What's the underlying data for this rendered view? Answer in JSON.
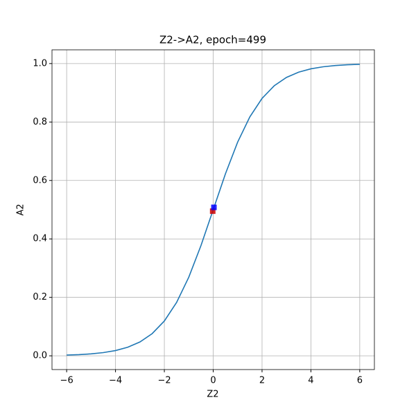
{
  "chart_data": {
    "type": "line",
    "title": "Z2->A2, epoch=499",
    "xlabel": "Z2",
    "ylabel": "A2",
    "series": [
      {
        "color": "#1f77b4",
        "x": [
          -6,
          -5.5,
          -5,
          -4.5,
          -4,
          -3.5,
          -3,
          -2.5,
          -2,
          -1.5,
          -1,
          -0.5,
          0,
          0.5,
          1,
          1.5,
          2,
          2.5,
          3,
          3.5,
          4,
          4.5,
          5,
          5.5,
          6
        ],
        "values": [
          0.0025,
          0.0041,
          0.0067,
          0.011,
          0.018,
          0.0293,
          0.0474,
          0.0759,
          0.1192,
          0.1824,
          0.2689,
          0.3775,
          0.5,
          0.6225,
          0.7311,
          0.8176,
          0.8808,
          0.9241,
          0.9526,
          0.9707,
          0.982,
          0.989,
          0.9933,
          0.9959,
          0.9975
        ]
      }
    ],
    "markers": [
      {
        "color": "#cc0000",
        "x": -0.02,
        "y": 0.495
      },
      {
        "color": "#0000ff",
        "x": 0.03,
        "y": 0.508
      }
    ],
    "xlim": [
      -6.6,
      6.6
    ],
    "ylim": [
      -0.047,
      1.047
    ],
    "xticks": [
      {
        "value": -6,
        "label": "−6"
      },
      {
        "value": -4,
        "label": "−4"
      },
      {
        "value": -2,
        "label": "−2"
      },
      0,
      2,
      4,
      6
    ],
    "yticks": [
      {
        "value": 0,
        "label": "0.0"
      },
      {
        "value": 0.2,
        "label": "0.2"
      },
      {
        "value": 0.4,
        "label": "0.4"
      },
      {
        "value": 0.6,
        "label": "0.6"
      },
      {
        "value": 0.8,
        "label": "0.8"
      },
      {
        "value": 1,
        "label": "1.0"
      }
    ],
    "grid": true
  }
}
